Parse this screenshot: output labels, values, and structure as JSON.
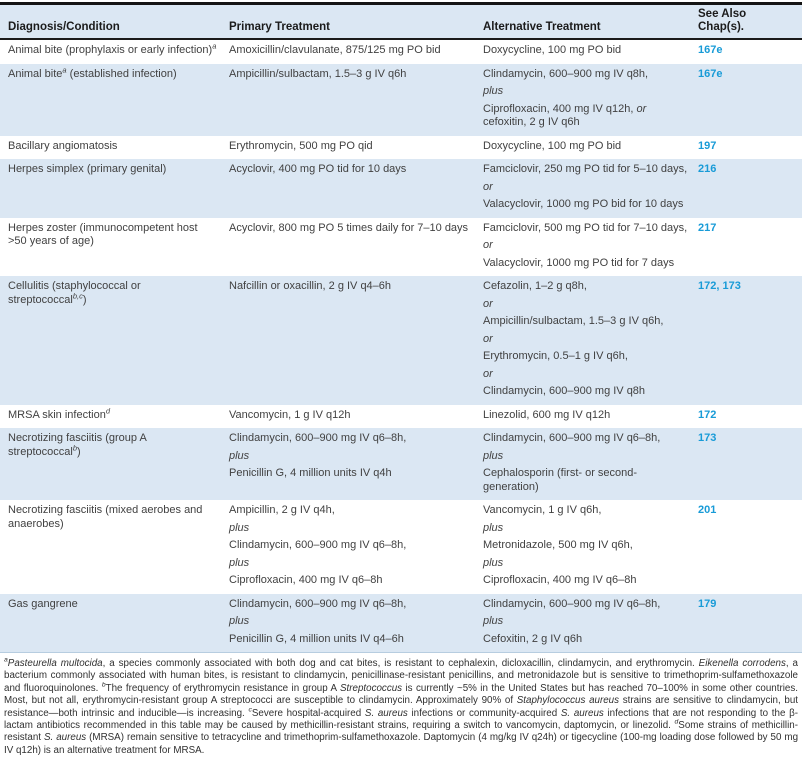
{
  "table": {
    "colors": {
      "row_alt_bg": "#dbe7f3",
      "header_bg": "#dbe7f3",
      "link": "#189bd7",
      "text": "#414141",
      "top_border": "#141414"
    },
    "header": {
      "col1": "Diagnosis/Condition",
      "col2": "Primary Treatment",
      "col3": "Alternative Treatment",
      "col4": "See Also Chap(s)."
    },
    "rows": [
      {
        "condition": [
          {
            "t": "Animal bite (prophylaxis or early infection)"
          },
          {
            "t": "a",
            "sup": true
          }
        ],
        "primary": [
          [
            {
              "t": "Amoxicillin/clavulanate, 875/125 mg PO bid"
            }
          ]
        ],
        "alternative": [
          [
            {
              "t": "Doxycycline, 100 mg PO bid"
            }
          ]
        ],
        "chapters": "167e"
      },
      {
        "condition": [
          {
            "t": "Animal bite"
          },
          {
            "t": "a",
            "sup": true
          },
          {
            "t": " (established infection)"
          }
        ],
        "primary": [
          [
            {
              "t": "Ampicillin/sulbactam, 1.5–3 g IV q6h"
            }
          ]
        ],
        "alternative": [
          [
            {
              "t": "Clindamycin, 600–900 mg IV q8h,"
            }
          ],
          [
            {
              "t": "plus",
              "it": true
            }
          ],
          [
            {
              "t": "Ciprofloxacin, 400 mg IV q12h, "
            },
            {
              "t": "or",
              "it": true
            },
            {
              "t": " cefoxitin, 2 g IV q6h"
            }
          ]
        ],
        "chapters": "167e"
      },
      {
        "condition": [
          {
            "t": "Bacillary angiomatosis"
          }
        ],
        "primary": [
          [
            {
              "t": "Erythromycin, 500 mg PO qid"
            }
          ]
        ],
        "alternative": [
          [
            {
              "t": "Doxycycline, 100 mg PO bid"
            }
          ]
        ],
        "chapters": "197"
      },
      {
        "condition": [
          {
            "t": "Herpes simplex (primary genital)"
          }
        ],
        "primary": [
          [
            {
              "t": "Acyclovir, 400 mg PO tid for 10 days"
            }
          ]
        ],
        "alternative": [
          [
            {
              "t": "Famciclovir, 250 mg PO tid for 5–10 days,"
            }
          ],
          [
            {
              "t": "or",
              "it": true
            }
          ],
          [
            {
              "t": "Valacyclovir, 1000 mg PO bid for 10 days"
            }
          ]
        ],
        "chapters": "216"
      },
      {
        "condition": [
          {
            "t": "Herpes zoster (immunocompetent host >50 years of age)"
          }
        ],
        "primary": [
          [
            {
              "t": "Acyclovir, 800 mg PO 5 times daily for 7–10 days"
            }
          ]
        ],
        "alternative": [
          [
            {
              "t": "Famciclovir, 500 mg PO tid for 7–10 days,"
            }
          ],
          [
            {
              "t": "or",
              "it": true
            }
          ],
          [
            {
              "t": "Valacyclovir, 1000 mg PO tid for 7 days"
            }
          ]
        ],
        "chapters": "217"
      },
      {
        "condition": [
          {
            "t": "Cellulitis (staphylococcal or streptococcal"
          },
          {
            "t": "b,c",
            "sup": true
          },
          {
            "t": ")"
          }
        ],
        "primary": [
          [
            {
              "t": "Nafcillin or oxacillin, 2 g IV q4–6h"
            }
          ]
        ],
        "alternative": [
          [
            {
              "t": "Cefazolin, 1–2 g q8h,"
            }
          ],
          [
            {
              "t": "or",
              "it": true
            }
          ],
          [
            {
              "t": "Ampicillin/sulbactam, 1.5–3 g IV q6h,"
            }
          ],
          [
            {
              "t": "or",
              "it": true
            }
          ],
          [
            {
              "t": "Erythromycin, 0.5–1 g IV q6h,"
            }
          ],
          [
            {
              "t": "or",
              "it": true
            }
          ],
          [
            {
              "t": "Clindamycin, 600–900 mg IV q8h"
            }
          ]
        ],
        "chapters": "172, 173"
      },
      {
        "condition": [
          {
            "t": "MRSA skin infection"
          },
          {
            "t": "d",
            "sup": true
          }
        ],
        "primary": [
          [
            {
              "t": "Vancomycin, 1 g IV q12h"
            }
          ]
        ],
        "alternative": [
          [
            {
              "t": "Linezolid, 600 mg IV q12h"
            }
          ]
        ],
        "chapters": "172"
      },
      {
        "condition": [
          {
            "t": "Necrotizing fasciitis (group A streptococcal"
          },
          {
            "t": "b",
            "sup": true
          },
          {
            "t": ")"
          }
        ],
        "primary": [
          [
            {
              "t": "Clindamycin, 600–900 mg IV q6–8h,"
            }
          ],
          [
            {
              "t": "plus",
              "it": true
            }
          ],
          [
            {
              "t": "Penicillin G, 4 million units IV q4h"
            }
          ]
        ],
        "alternative": [
          [
            {
              "t": "Clindamycin, 600–900 mg IV q6–8h,"
            }
          ],
          [
            {
              "t": "plus",
              "it": true
            }
          ],
          [
            {
              "t": "Cephalosporin (first- or second-generation)"
            }
          ]
        ],
        "chapters": "173"
      },
      {
        "condition": [
          {
            "t": "Necrotizing fasciitis (mixed aerobes and anaerobes)"
          }
        ],
        "primary": [
          [
            {
              "t": "Ampicillin, 2 g IV q4h,"
            }
          ],
          [
            {
              "t": "plus",
              "it": true
            }
          ],
          [
            {
              "t": "Clindamycin, 600–900 mg IV q6–8h,"
            }
          ],
          [
            {
              "t": "plus",
              "it": true
            }
          ],
          [
            {
              "t": "Ciprofloxacin, 400 mg IV q6–8h"
            }
          ]
        ],
        "alternative": [
          [
            {
              "t": "Vancomycin, 1 g IV q6h,"
            }
          ],
          [
            {
              "t": "plus",
              "it": true
            }
          ],
          [
            {
              "t": "Metronidazole, 500 mg IV q6h,"
            }
          ],
          [
            {
              "t": "plus",
              "it": true
            }
          ],
          [
            {
              "t": "Ciprofloxacin, 400 mg IV q6–8h"
            }
          ]
        ],
        "chapters": "201"
      },
      {
        "condition": [
          {
            "t": "Gas gangrene"
          }
        ],
        "primary": [
          [
            {
              "t": "Clindamycin, 600–900 mg IV q6–8h,"
            }
          ],
          [
            {
              "t": "plus",
              "it": true
            }
          ],
          [
            {
              "t": "Penicillin G, 4 million units IV q4–6h"
            }
          ]
        ],
        "alternative": [
          [
            {
              "t": "Clindamycin, 600–900 mg IV q6–8h,"
            }
          ],
          [
            {
              "t": "plus",
              "it": true
            }
          ],
          [
            {
              "t": "Cefoxitin, 2 g IV q6h"
            }
          ]
        ],
        "chapters": "179"
      }
    ]
  },
  "footnote": {
    "segments": [
      {
        "t": "a",
        "sup": true
      },
      {
        "t": "Pasteurella multocida",
        "it": true
      },
      {
        "t": ", a species commonly associated with both dog and cat bites, is resistant to cephalexin, dicloxacillin, clindamycin, and erythromycin. "
      },
      {
        "t": "Eikenella corrodens",
        "it": true
      },
      {
        "t": ", a bacterium commonly associated with human bites, is resistant to clindamycin, penicillinase-resistant penicillins, and metronidazole but is sensitive to trimethoprim-sulfamethoxazole and fluoroquinolones.  "
      },
      {
        "t": "b",
        "sup": true
      },
      {
        "t": "The frequency of erythromycin resistance in group A "
      },
      {
        "t": "Streptococcus",
        "it": true
      },
      {
        "t": " is currently ~5% in the United States but has reached 70–100% in some other countries. Most, but not all, erythromycin-resistant group A streptococci are susceptible to clindamycin. Approximately 90% of "
      },
      {
        "t": "Staphylococcus aureus",
        "it": true
      },
      {
        "t": " strains are sensitive to clindamycin, but resistance—both intrinsic and inducible—is increasing.  "
      },
      {
        "t": "c",
        "sup": true
      },
      {
        "t": "Severe hospital-acquired "
      },
      {
        "t": "S. aureus",
        "it": true
      },
      {
        "t": " infections or community-acquired "
      },
      {
        "t": "S. aureus",
        "it": true
      },
      {
        "t": " infections that are not responding to the β-lactam antibiotics recommended in this table may be caused by methicillin-resistant strains, requiring a switch to vancomycin, daptomycin, or linezolid.  "
      },
      {
        "t": "d",
        "sup": true
      },
      {
        "t": "Some strains of methicillin-resistant "
      },
      {
        "t": "S. aureus",
        "it": true
      },
      {
        "t": " (MRSA) remain sensitive to tetracycline and trimethoprim-sulfamethoxazole. Daptomycin (4 mg/kg IV q24h) or tigecycline (100-mg loading dose followed by 50 mg IV q12h) is an alternative treatment for MRSA."
      }
    ]
  }
}
